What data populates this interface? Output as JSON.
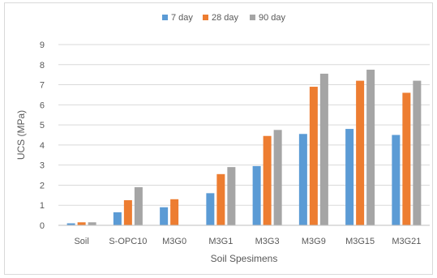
{
  "chart_data": {
    "type": "bar",
    "categories": [
      "Soil",
      "S-OPC10",
      "M3G0",
      "M3G1",
      "M3G3",
      "M3G9",
      "M3G15",
      "M3G21"
    ],
    "series": [
      {
        "name": "7 day",
        "color": "#5b9bd5",
        "values": [
          0.1,
          0.65,
          0.9,
          1.6,
          2.95,
          4.55,
          4.8,
          4.5
        ]
      },
      {
        "name": "28 day",
        "color": "#ed7d31",
        "values": [
          0.15,
          1.25,
          1.3,
          2.55,
          4.45,
          6.9,
          7.2,
          6.6
        ]
      },
      {
        "name": "90 day",
        "color": "#a5a5a5",
        "values": [
          0.15,
          1.9,
          null,
          2.9,
          4.75,
          7.55,
          7.75,
          7.2
        ]
      }
    ],
    "title": "",
    "xlabel": "Soil Spesimens",
    "ylabel": "UCS (MPa)",
    "ylim": [
      0,
      9
    ],
    "yticks": [
      0,
      1,
      2,
      3,
      4,
      5,
      6,
      7,
      8,
      9
    ],
    "grid": true,
    "legend_position": "top"
  }
}
